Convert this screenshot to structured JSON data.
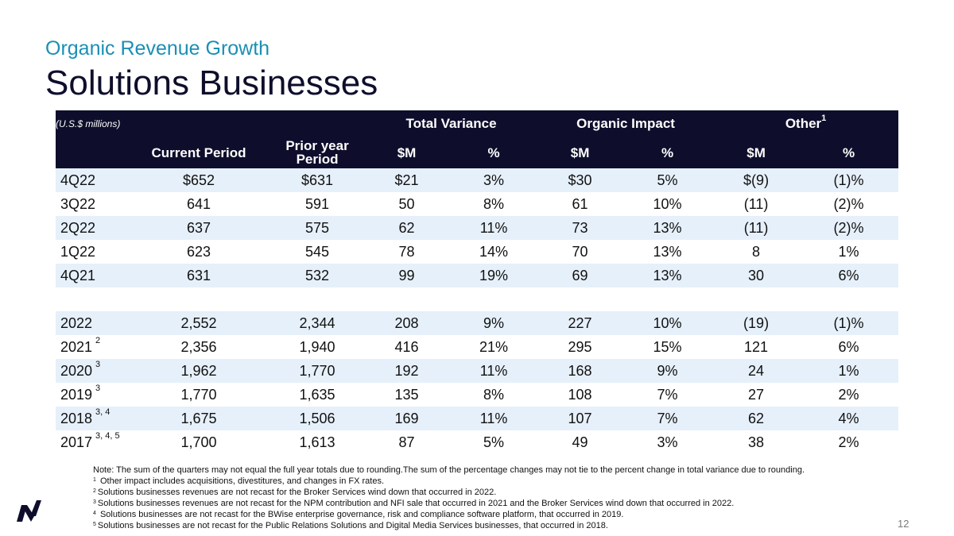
{
  "header": {
    "subtitle": "Organic Revenue Growth",
    "title": "Solutions Businesses"
  },
  "table": {
    "units_label": "(U.S.$ millions)",
    "group_headers": {
      "total_variance": "Total Variance",
      "organic_impact": "Organic Impact",
      "other": "Other",
      "other_sup": "1"
    },
    "columns": [
      "Current Period",
      "Prior year Period",
      "$M",
      "%",
      "$M",
      "%",
      "$M",
      "%"
    ],
    "rows": [
      {
        "period": "4Q22",
        "sup": "",
        "current": "$652",
        "prior": "$631",
        "tv_m": "$21",
        "tv_pct": "3%",
        "oi_m": "$30",
        "oi_pct": "5%",
        "ot_m": "$(9)",
        "ot_pct": "(1)%"
      },
      {
        "period": "3Q22",
        "sup": "",
        "current": "641",
        "prior": "591",
        "tv_m": "50",
        "tv_pct": "8%",
        "oi_m": "61",
        "oi_pct": "10%",
        "ot_m": "(11)",
        "ot_pct": "(2)%"
      },
      {
        "period": "2Q22",
        "sup": "",
        "current": "637",
        "prior": "575",
        "tv_m": "62",
        "tv_pct": "11%",
        "oi_m": "73",
        "oi_pct": "13%",
        "ot_m": "(11)",
        "ot_pct": "(2)%"
      },
      {
        "period": "1Q22",
        "sup": "",
        "current": "623",
        "prior": "545",
        "tv_m": "78",
        "tv_pct": "14%",
        "oi_m": "70",
        "oi_pct": "13%",
        "ot_m": "8",
        "ot_pct": "1%"
      },
      {
        "period": "4Q21",
        "sup": "",
        "current": "631",
        "prior": "532",
        "tv_m": "99",
        "tv_pct": "19%",
        "oi_m": "69",
        "oi_pct": "13%",
        "ot_m": "30",
        "ot_pct": "6%"
      },
      {
        "period": "2022",
        "sup": "",
        "current": "2,552",
        "prior": "2,344",
        "tv_m": "208",
        "tv_pct": "9%",
        "oi_m": "227",
        "oi_pct": "10%",
        "ot_m": "(19)",
        "ot_pct": "(1)%"
      },
      {
        "period": "2021",
        "sup": "2",
        "current": "2,356",
        "prior": "1,940",
        "tv_m": "416",
        "tv_pct": "21%",
        "oi_m": "295",
        "oi_pct": "15%",
        "ot_m": "121",
        "ot_pct": "6%"
      },
      {
        "period": "2020",
        "sup": "3",
        "current": "1,962",
        "prior": "1,770",
        "tv_m": "192",
        "tv_pct": "11%",
        "oi_m": "168",
        "oi_pct": "9%",
        "ot_m": "24",
        "ot_pct": "1%"
      },
      {
        "period": "2019",
        "sup": "3",
        "current": "1,770",
        "prior": "1,635",
        "tv_m": "135",
        "tv_pct": "8%",
        "oi_m": "108",
        "oi_pct": "7%",
        "ot_m": "27",
        "ot_pct": "2%"
      },
      {
        "period": "2018",
        "sup": "3, 4",
        "current": "1,675",
        "prior": "1,506",
        "tv_m": "169",
        "tv_pct": "11%",
        "oi_m": "107",
        "oi_pct": "7%",
        "ot_m": "62",
        "ot_pct": "4%"
      },
      {
        "period": "2017",
        "sup": "3, 4, 5",
        "current": "1,700",
        "prior": "1,613",
        "tv_m": "87",
        "tv_pct": "5%",
        "oi_m": "49",
        "oi_pct": "3%",
        "ot_m": "38",
        "ot_pct": "2%"
      }
    ]
  },
  "notes": [
    {
      "sup": "",
      "text": "Note: The sum of the quarters may not equal the full year totals due to rounding.The sum of the percentage changes may not tie to the percent change in total variance due to rounding."
    },
    {
      "sup": "1",
      "text": " Other impact includes acquisitions, divestitures, and changes in FX rates."
    },
    {
      "sup": "2",
      "text": "Solutions businesses revenues are not recast for the Broker Services wind down that occurred in 2022."
    },
    {
      "sup": "3",
      "text": "Solutions businesses revenues are not recast for the NPM contribution and NFI sale that occurred in 2021 and the Broker Services wind down that occurred in 2022."
    },
    {
      "sup": "4",
      "text": " Solutions businesses are not recast for the BWise enterprise governance, risk and compliance software platform, that occurred in 2019."
    },
    {
      "sup": "5",
      "text": "Solutions businesses are not recast for the Public Relations Solutions and Digital Media Services businesses, that occurred in 2018."
    }
  ],
  "footer": {
    "page_number": "12"
  },
  "colors": {
    "header_bg": "#0E0E2C",
    "row_shade": "#E6F0FA",
    "subtitle": "#1B8FB5",
    "logo": "#0E0E2C"
  }
}
